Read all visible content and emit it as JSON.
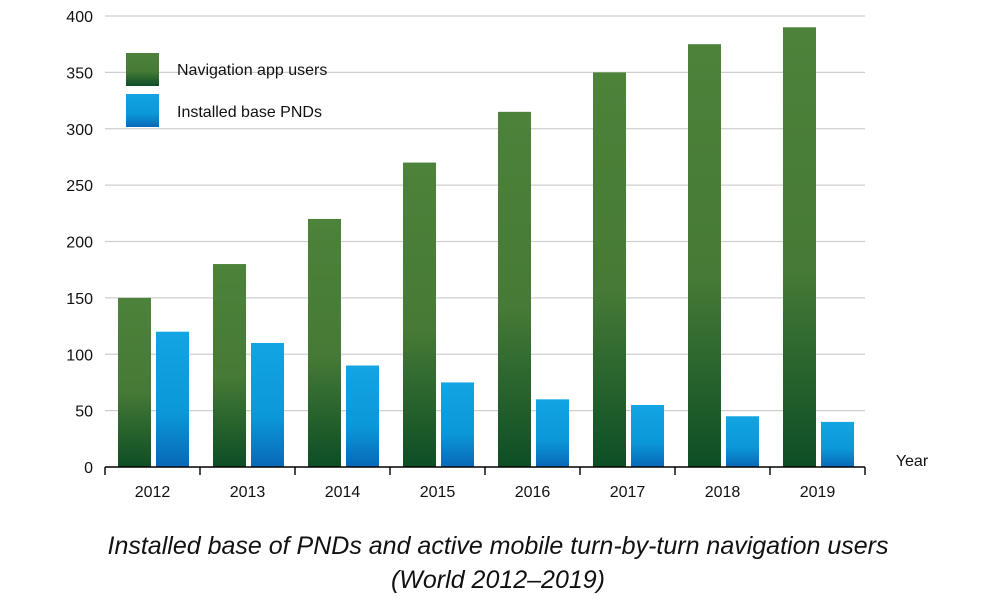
{
  "chart_data": {
    "type": "bar",
    "categories": [
      "2012",
      "2013",
      "2014",
      "2015",
      "2016",
      "2017",
      "2018",
      "2019"
    ],
    "series": [
      {
        "name": "Navigation app users",
        "values": [
          150,
          180,
          220,
          270,
          315,
          350,
          375,
          390
        ],
        "color": "#4a7f37"
      },
      {
        "name": "Installed base PNDs",
        "values": [
          120,
          110,
          90,
          75,
          60,
          55,
          45,
          40
        ],
        "color": "#0ea0dd"
      }
    ],
    "xlabel": "Year",
    "ylabel": "",
    "ylim": [
      0,
      400
    ],
    "yticks": [
      0,
      50,
      100,
      150,
      200,
      250,
      300,
      350,
      400
    ],
    "grid": true,
    "legend_position": "top-left"
  },
  "caption": {
    "line1": "Installed base of PNDs and active mobile turn-by-turn navigation users",
    "line2": "(World 2012–2019)"
  }
}
